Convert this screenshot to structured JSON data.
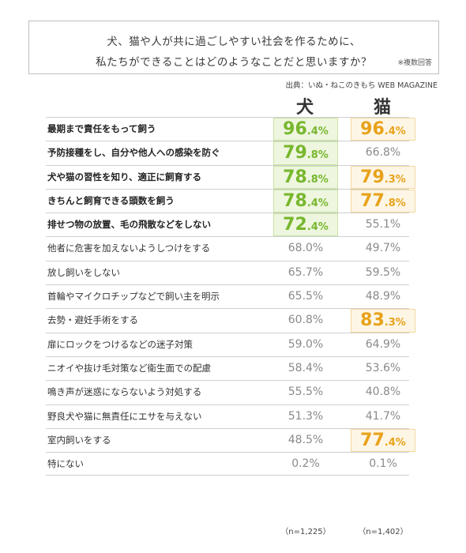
{
  "title": {
    "line1": "犬、猫や人が共に過ごしやすい社会を作るために、",
    "line2": "私たちができることはどのようなことだと思いますか？",
    "note": "※複数回答"
  },
  "source": "出典：いぬ・ねこのきもち WEB MAGAZINE",
  "columns": {
    "dog": "犬",
    "cat": "猫"
  },
  "n": {
    "dog": "（n=1,225）",
    "cat": "（n=1,402）"
  },
  "colors": {
    "dog_highlight": "#77b72d",
    "cat_highlight": "#e8a21a",
    "plain": "#8a8a8a"
  },
  "chart_data": {
    "type": "table",
    "title": "犬、猫や人が共に過ごしやすい社会を作るために、私たちができることはどのようなことだと思いますか？",
    "series": [
      {
        "name": "犬",
        "values": [
          96.4,
          79.8,
          78.8,
          78.4,
          72.4,
          68.0,
          65.7,
          65.5,
          60.8,
          59.0,
          58.4,
          55.5,
          51.3,
          48.5,
          0.2
        ]
      },
      {
        "name": "猫",
        "values": [
          96.4,
          66.8,
          79.3,
          77.8,
          55.1,
          49.7,
          59.5,
          48.9,
          83.3,
          64.9,
          53.6,
          40.8,
          41.7,
          77.4,
          0.1
        ]
      }
    ],
    "rows": [
      {
        "label": "最期まで責任をもって飼う",
        "bold": true,
        "dog": "96.4",
        "cat": "96.4",
        "dog_hi": true,
        "cat_hi": true
      },
      {
        "label": "予防接種をし、自分や他人への感染を防ぐ",
        "bold": true,
        "dog": "79.8",
        "cat": "66.8",
        "dog_hi": true,
        "cat_hi": false
      },
      {
        "label": "犬や猫の習性を知り、適正に飼育する",
        "bold": true,
        "dog": "78.8",
        "cat": "79.3",
        "dog_hi": true,
        "cat_hi": true
      },
      {
        "label": "きちんと飼育できる頭数を飼う",
        "bold": true,
        "dog": "78.4",
        "cat": "77.8",
        "dog_hi": true,
        "cat_hi": true
      },
      {
        "label": "排せつ物の放置、毛の飛散などをしない",
        "bold": true,
        "dog": "72.4",
        "cat": "55.1",
        "dog_hi": true,
        "cat_hi": false
      },
      {
        "label": "他者に危害を加えないようしつけをする",
        "bold": false,
        "dog": "68.0",
        "cat": "49.7",
        "dog_hi": false,
        "cat_hi": false
      },
      {
        "label": "放し飼いをしない",
        "bold": false,
        "dog": "65.7",
        "cat": "59.5",
        "dog_hi": false,
        "cat_hi": false
      },
      {
        "label": "首輪やマイクロチップなどで飼い主を明示",
        "bold": false,
        "dog": "65.5",
        "cat": "48.9",
        "dog_hi": false,
        "cat_hi": false
      },
      {
        "label": "去勢・避妊手術をする",
        "bold": false,
        "dog": "60.8",
        "cat": "83.3",
        "dog_hi": false,
        "cat_hi": true
      },
      {
        "label": "扉にロックをつけるなどの迷子対策",
        "bold": false,
        "dog": "59.0",
        "cat": "64.9",
        "dog_hi": false,
        "cat_hi": false
      },
      {
        "label": "ニオイや抜け毛対策など衛生面での配慮",
        "bold": false,
        "dog": "58.4",
        "cat": "53.6",
        "dog_hi": false,
        "cat_hi": false
      },
      {
        "label": "鳴き声が迷惑にならないよう対処する",
        "bold": false,
        "dog": "55.5",
        "cat": "40.8",
        "dog_hi": false,
        "cat_hi": false
      },
      {
        "label": "野良犬や猫に無責任にエサを与えない",
        "bold": false,
        "dog": "51.3",
        "cat": "41.7",
        "dog_hi": false,
        "cat_hi": false
      },
      {
        "label": "室内飼いをする",
        "bold": false,
        "dog": "48.5",
        "cat": "77.4",
        "dog_hi": false,
        "cat_hi": true
      },
      {
        "label": "特にない",
        "bold": false,
        "dog": "0.2",
        "cat": "0.1",
        "dog_hi": false,
        "cat_hi": false
      }
    ]
  }
}
